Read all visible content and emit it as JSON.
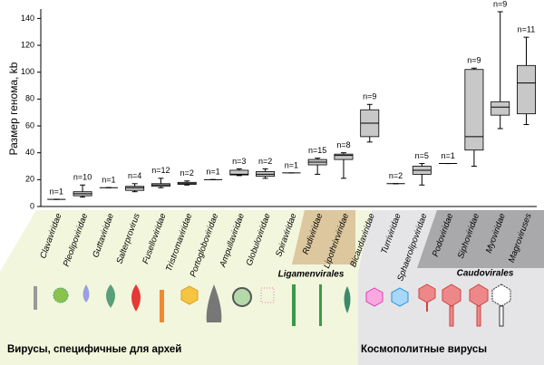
{
  "chart_data": {
    "type": "box",
    "y_label": "Размер генома, kb",
    "categories": [
      "Clavaviridae",
      "Pleolipoviridae",
      "Guttaviridae",
      "Salterprovirus",
      "Fuselloviridae",
      "Tristromaviridae",
      "Portogloboviridae",
      "Ampullaviridae",
      "Globuloviridae",
      "Spiraviridae",
      "Rudiviridae",
      "Lipothrixviridae",
      "Bicaudaviridae",
      "Turriviridae",
      "Sphaerolipoviridae",
      "Podoviridae",
      "Siphoviridae",
      "Myoviridae",
      "Magroviruses"
    ],
    "n_labels": [
      "n=1",
      "n=10",
      "n=1",
      "n=4",
      "n=12",
      "n=2",
      "n=1",
      "n=3",
      "n=2",
      "n=1",
      "n=15",
      "n=8",
      "n=9",
      "n=2",
      "n=5",
      "n=1",
      "n=9",
      "n=9",
      "n=11"
    ],
    "boxes": [
      {
        "min": 5.3,
        "q1": 5.3,
        "median": 5.3,
        "q3": 5.3,
        "max": 5.3
      },
      {
        "min": 7,
        "q1": 8,
        "median": 9.5,
        "q3": 11,
        "max": 16
      },
      {
        "min": 14,
        "q1": 14,
        "median": 14,
        "q3": 14,
        "max": 14
      },
      {
        "min": 11,
        "q1": 12,
        "median": 14,
        "q3": 15,
        "max": 17
      },
      {
        "min": 14,
        "q1": 15,
        "median": 16,
        "q3": 17,
        "max": 21
      },
      {
        "min": 16,
        "q1": 16.5,
        "median": 17,
        "q3": 18,
        "max": 19
      },
      {
        "min": 20,
        "q1": 20,
        "median": 20,
        "q3": 20,
        "max": 20
      },
      {
        "min": 23,
        "q1": 23.5,
        "median": 24,
        "q3": 27,
        "max": 28
      },
      {
        "min": 21,
        "q1": 22.5,
        "median": 24,
        "q3": 26,
        "max": 28
      },
      {
        "min": 25,
        "q1": 25,
        "median": 25,
        "q3": 25,
        "max": 25
      },
      {
        "min": 24,
        "q1": 31,
        "median": 33,
        "q3": 35,
        "max": 36
      },
      {
        "min": 21,
        "q1": 35,
        "median": 38,
        "q3": 39,
        "max": 40
      },
      {
        "min": 48,
        "q1": 52,
        "median": 62,
        "q3": 72,
        "max": 76
      },
      {
        "min": 17,
        "q1": 17,
        "median": 17,
        "q3": 17,
        "max": 17
      },
      {
        "min": 16,
        "q1": 24,
        "median": 27,
        "q3": 30,
        "max": 32
      },
      {
        "min": 32,
        "q1": 32,
        "median": 32,
        "q3": 32,
        "max": 32
      },
      {
        "min": 30,
        "q1": 42,
        "median": 52,
        "q3": 102,
        "max": 103
      },
      {
        "min": 58,
        "q1": 68,
        "median": 74,
        "q3": 78,
        "max": 145
      },
      {
        "min": 61,
        "q1": 69,
        "median": 92,
        "q3": 105,
        "max": 126
      }
    ],
    "color": "#c8c8c8",
    "ylim": [
      0,
      147
    ],
    "yticks": [
      0,
      20,
      40,
      60,
      80,
      100,
      120,
      140
    ],
    "groups": [
      "Ligamenvirales",
      "Caudovirales"
    ],
    "sections": [
      "Вирусы, специфичные для архей",
      "Космополитные вирусы"
    ]
  }
}
